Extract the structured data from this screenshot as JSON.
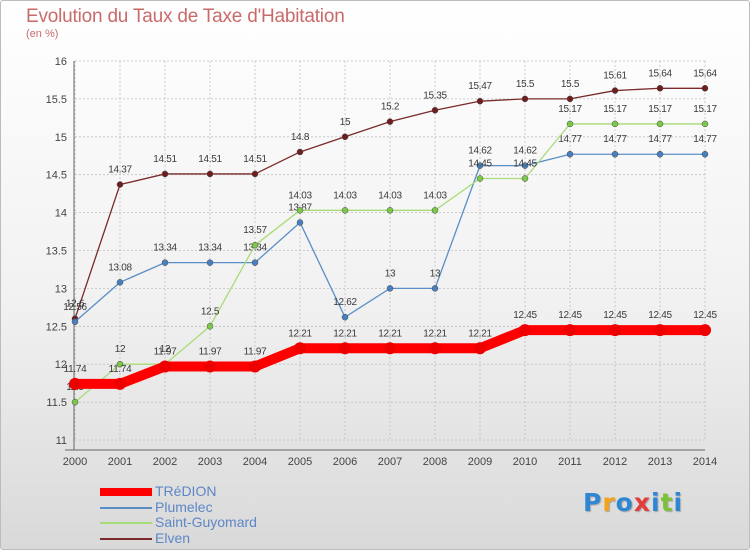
{
  "header": {
    "title": "Evolution du Taux de Taxe d'Habitation",
    "subtitle": "(en %)"
  },
  "chart_data": {
    "type": "line",
    "x": [
      "2000",
      "2001",
      "2002",
      "2003",
      "2004",
      "2005",
      "2006",
      "2007",
      "2008",
      "2009",
      "2010",
      "2011",
      "2012",
      "2013",
      "2014"
    ],
    "ylim": [
      11,
      16
    ],
    "yticks": [
      "11",
      "11.5",
      "12",
      "12.5",
      "13",
      "13.5",
      "14",
      "14.5",
      "15",
      "15.5",
      "16"
    ],
    "grid": true,
    "legend_position": "bottom-left",
    "series": [
      {
        "name": "Elven",
        "color": "#7a2a2a",
        "marker": "#6e1e1e",
        "values": [
          12.6,
          14.37,
          14.51,
          14.51,
          14.51,
          14.8,
          15,
          15.2,
          15.35,
          15.47,
          15.5,
          15.5,
          15.61,
          15.64,
          15.64
        ],
        "labels": [
          "12.6",
          "14.37",
          "14.51",
          "14.51",
          "14.51",
          "14.8",
          "15",
          "15.2",
          "15.35",
          "15.47",
          "15.5",
          "15.5",
          "15.61",
          "15.64",
          "15.64"
        ]
      },
      {
        "name": "Plumelec",
        "color": "#5b8ec6",
        "marker": "#4a7fbf",
        "values": [
          12.56,
          13.08,
          13.34,
          13.34,
          13.34,
          13.87,
          12.62,
          13,
          13,
          14.62,
          14.62,
          14.77,
          14.77,
          14.77,
          14.77
        ],
        "labels": [
          "12.56",
          "13.08",
          "13.34",
          "13.34",
          "13.34",
          "13.87",
          "12.62",
          "13",
          "13",
          "14.62",
          "14.62",
          "14.77",
          "14.77",
          "14.77",
          "14.77"
        ]
      },
      {
        "name": "Saint-Guyomard",
        "color": "#a8dc78",
        "marker": "#7cc94a",
        "values": [
          11.5,
          12,
          12,
          12.5,
          13.57,
          14.03,
          14.03,
          14.03,
          14.03,
          14.45,
          14.45,
          15.17,
          15.17,
          15.17,
          15.17
        ],
        "labels": [
          "11.5",
          "12",
          "12",
          "12.5",
          "13.57",
          "14.03",
          "14.03",
          "14.03",
          "14.03",
          "14.45",
          "14.45",
          "15.17",
          "15.17",
          "15.17",
          "15.17"
        ]
      },
      {
        "name": "TRéDION",
        "color": "#ff0000",
        "marker": "#ee0000",
        "values": [
          11.74,
          11.74,
          11.97,
          11.97,
          11.97,
          12.21,
          12.21,
          12.21,
          12.21,
          12.21,
          12.45,
          12.45,
          12.45,
          12.45,
          12.45
        ],
        "labels": [
          "11.74",
          "11.74",
          "11.97",
          "11.97",
          "11.97",
          "12.21",
          "12.21",
          "12.21",
          "12.21",
          "12.21",
          "12.45",
          "12.45",
          "12.45",
          "12.45",
          "12.45"
        ]
      }
    ],
    "legend_order": [
      "TRéDION",
      "Plumelec",
      "Saint-Guyomard",
      "Elven"
    ]
  },
  "logo": {
    "letters": [
      "P",
      "r",
      "o",
      "x",
      "i",
      "t",
      "i"
    ],
    "colors": [
      "#2f86d3",
      "#f2a21b",
      "#2f86d3",
      "#e43c3c",
      "#2f86d3",
      "#7cc236",
      "#2f86d3"
    ]
  }
}
